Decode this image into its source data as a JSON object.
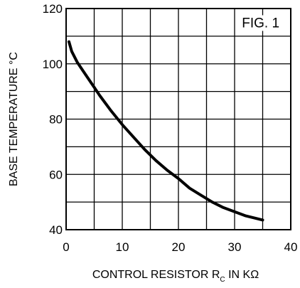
{
  "chart_data": {
    "type": "line",
    "annotation": "FIG. 1",
    "xlabel_main": "CONTROL RESISTOR R",
    "xlabel_sub": "C",
    "xlabel_unit": " IN KΩ",
    "ylabel": "BASE TEMPERATURE °C",
    "xlim": [
      0,
      40
    ],
    "ylim": [
      40,
      120
    ],
    "x_ticks": [
      "0",
      "10",
      "20",
      "30",
      "40"
    ],
    "y_ticks": [
      "40",
      "60",
      "80",
      "100",
      "120"
    ],
    "grid": true,
    "series": [
      {
        "x": [
          0.5,
          1,
          2,
          3,
          4,
          5,
          6,
          8,
          10,
          12,
          14,
          16,
          18,
          20,
          22,
          24,
          26,
          28,
          30,
          32,
          34,
          35
        ],
        "y": [
          108,
          104.5,
          100.5,
          97.5,
          94.5,
          91.5,
          88.5,
          83,
          78,
          73.5,
          69,
          65,
          61.5,
          58.5,
          55,
          52.5,
          50,
          48,
          46.5,
          45,
          44,
          43.5
        ]
      }
    ]
  }
}
